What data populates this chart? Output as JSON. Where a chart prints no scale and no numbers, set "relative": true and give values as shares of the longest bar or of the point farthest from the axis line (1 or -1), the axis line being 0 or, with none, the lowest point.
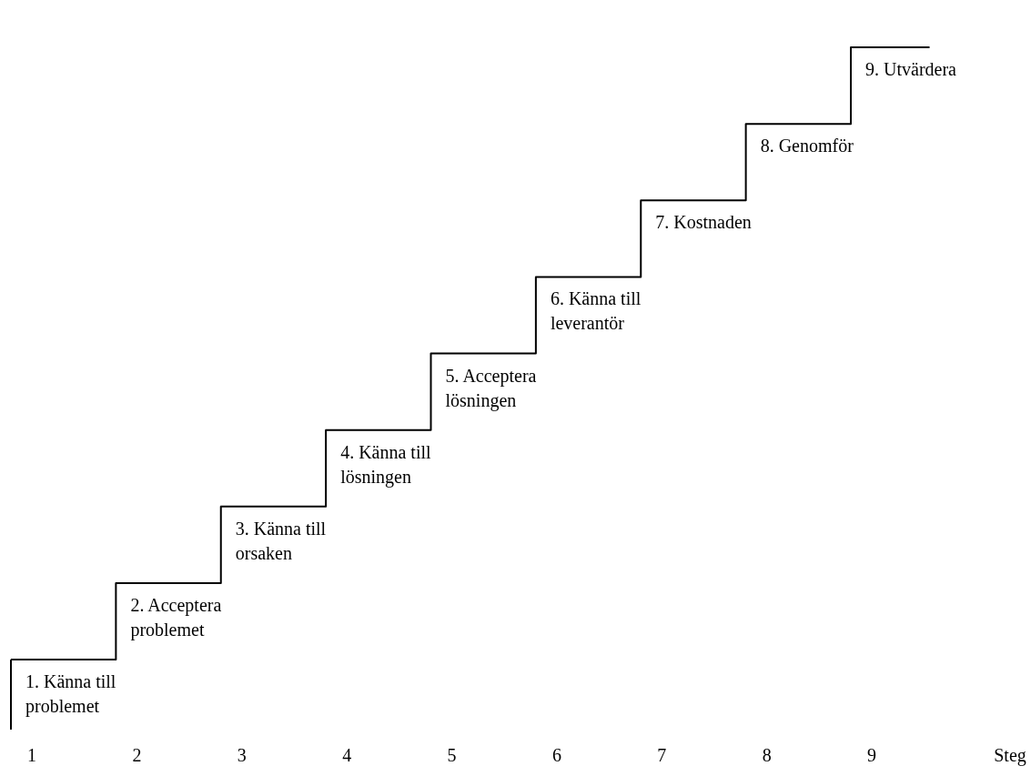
{
  "chart_data": {
    "type": "step",
    "relative": true,
    "xlabel": "Steg",
    "categories": [
      "1",
      "2",
      "3",
      "4",
      "5",
      "6",
      "7",
      "8",
      "9"
    ],
    "values": [
      0,
      0.125,
      0.25,
      0.375,
      0.5,
      0.625,
      0.75,
      0.875,
      1
    ],
    "color": "#000000",
    "annotations": [
      {
        "text": "1. Känna till\nproblemet",
        "x": "1",
        "y": 0
      },
      {
        "text": "2. Acceptera\nproblemet",
        "x": "2",
        "y": 0.125
      },
      {
        "text": "3. Känna till\norsaken",
        "x": "3",
        "y": 0.25
      },
      {
        "text": "4. Känna till\nlösningen",
        "x": "4",
        "y": 0.375
      },
      {
        "text": "5. Acceptera\nlösningen",
        "x": "5",
        "y": 0.5
      },
      {
        "text": "6. Känna till\nleverantör",
        "x": "6",
        "y": 0.625
      },
      {
        "text": "7. Kostnaden",
        "x": "7",
        "y": 0.75
      },
      {
        "text": "8. Genomför",
        "x": "8",
        "y": 0.875
      },
      {
        "text": "9. Utvärdera",
        "x": "9",
        "y": 1
      }
    ]
  }
}
